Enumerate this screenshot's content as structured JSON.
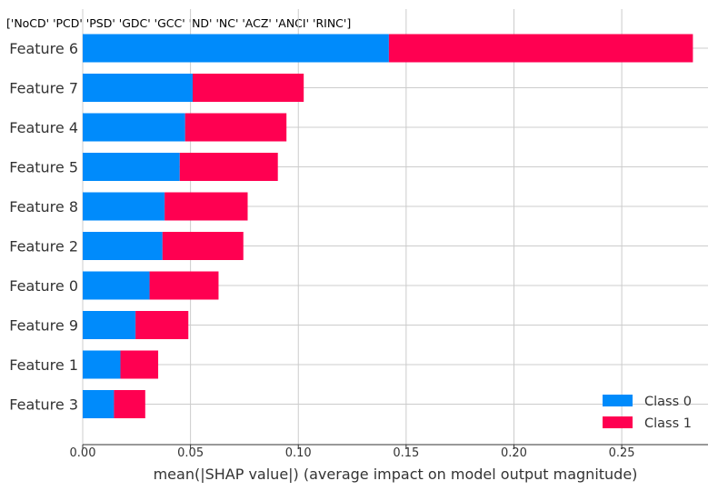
{
  "chart_data": {
    "type": "bar",
    "orientation": "horizontal",
    "stacked": true,
    "title": "['NoCD' 'PCD' 'PSD' 'GDC' 'GCC' 'ND' 'NC' 'ACZ' 'ANCI' 'RINC']",
    "xlabel": "mean(|SHAP value|) (average impact on model output magnitude)",
    "ylabel": "",
    "xlim": [
      0,
      0.29
    ],
    "xticks": [
      0,
      0.05,
      0.1,
      0.15,
      0.2,
      0.25
    ],
    "xtick_labels": [
      "0.00",
      "0.05",
      "0.10",
      "0.15",
      "0.20",
      "0.25"
    ],
    "grid": true,
    "legend_position": "bottom-right",
    "categories": [
      "Feature 6",
      "Feature 7",
      "Feature 4",
      "Feature 5",
      "Feature 8",
      "Feature 2",
      "Feature 0",
      "Feature 9",
      "Feature 1",
      "Feature 3"
    ],
    "series": [
      {
        "name": "Class 0",
        "color": "#008bfb",
        "values": [
          0.142,
          0.051,
          0.0475,
          0.045,
          0.038,
          0.037,
          0.031,
          0.0245,
          0.0175,
          0.0145
        ]
      },
      {
        "name": "Class 1",
        "color": "#ff0051",
        "values": [
          0.141,
          0.0515,
          0.047,
          0.0455,
          0.0385,
          0.0375,
          0.032,
          0.0245,
          0.0175,
          0.0145
        ]
      }
    ]
  }
}
